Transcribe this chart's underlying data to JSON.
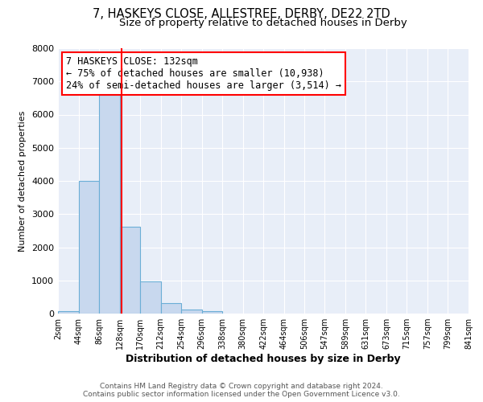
{
  "title": "7, HASKEYS CLOSE, ALLESTREE, DERBY, DE22 2TD",
  "subtitle": "Size of property relative to detached houses in Derby",
  "xlabel": "Distribution of detached houses by size in Derby",
  "ylabel": "Number of detached properties",
  "bin_edges": [
    2,
    44,
    86,
    128,
    170,
    212,
    254,
    296,
    338,
    380,
    422,
    464,
    506,
    547,
    589,
    631,
    673,
    715,
    757,
    799,
    841
  ],
  "bin_heights": [
    70,
    4000,
    6600,
    2620,
    960,
    320,
    130,
    70,
    0,
    0,
    0,
    0,
    0,
    0,
    0,
    0,
    0,
    0,
    0,
    0
  ],
  "bar_color": "#c8d8ee",
  "bar_edge_color": "#6baed6",
  "property_line_x": 132,
  "annotation_title": "7 HASKEYS CLOSE: 132sqm",
  "annotation_line1": "← 75% of detached houses are smaller (10,938)",
  "annotation_line2": "24% of semi-detached houses are larger (3,514) →",
  "ylim": [
    0,
    8000
  ],
  "yticks": [
    0,
    1000,
    2000,
    3000,
    4000,
    5000,
    6000,
    7000,
    8000
  ],
  "xtick_labels": [
    "2sqm",
    "44sqm",
    "86sqm",
    "128sqm",
    "170sqm",
    "212sqm",
    "254sqm",
    "296sqm",
    "338sqm",
    "380sqm",
    "422sqm",
    "464sqm",
    "506sqm",
    "547sqm",
    "589sqm",
    "631sqm",
    "673sqm",
    "715sqm",
    "757sqm",
    "799sqm",
    "841sqm"
  ],
  "footer_line1": "Contains HM Land Registry data © Crown copyright and database right 2024.",
  "footer_line2": "Contains public sector information licensed under the Open Government Licence v3.0.",
  "bg_color": "#ffffff",
  "plot_bg_color": "#e8eef8",
  "grid_color": "#ffffff",
  "title_fontsize": 10.5,
  "subtitle_fontsize": 9.5,
  "annotation_fontsize": 8.5,
  "ylabel_fontsize": 8,
  "xlabel_fontsize": 9
}
